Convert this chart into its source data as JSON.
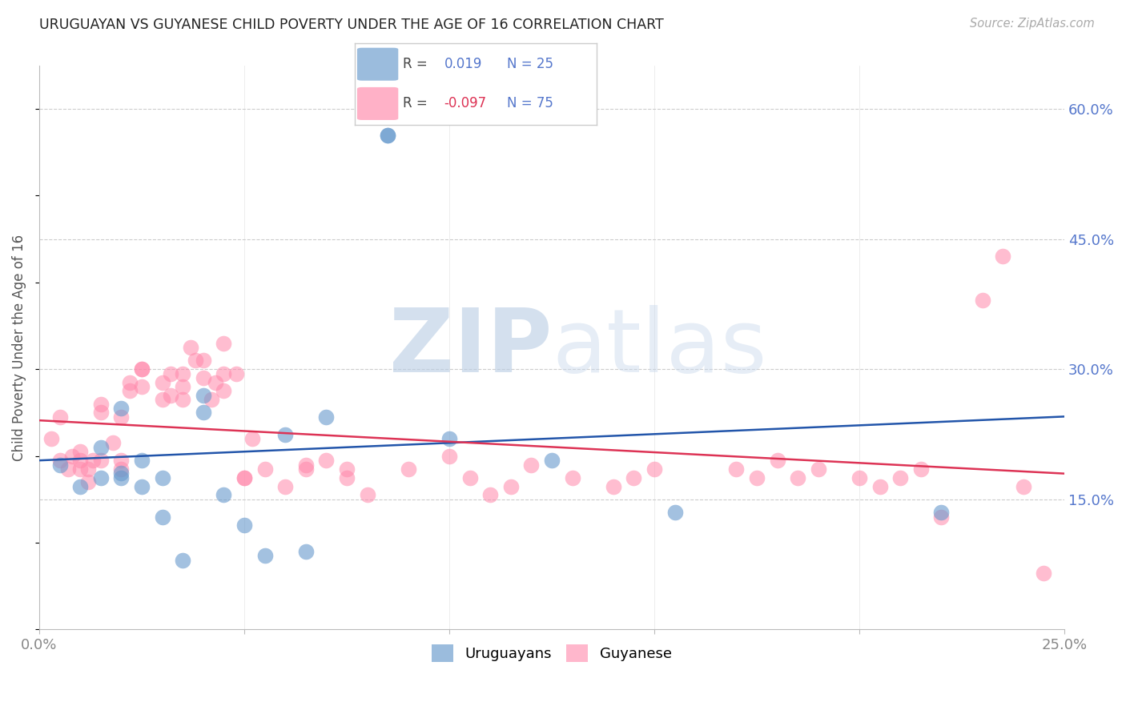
{
  "title": "URUGUAYAN VS GUYANESE CHILD POVERTY UNDER THE AGE OF 16 CORRELATION CHART",
  "source": "Source: ZipAtlas.com",
  "ylabel": "Child Poverty Under the Age of 16",
  "xmin": 0.0,
  "xmax": 25.0,
  "ymin": 0.0,
  "ymax": 65.0,
  "yticks": [
    15.0,
    30.0,
    45.0,
    60.0
  ],
  "ytick_labels": [
    "15.0%",
    "30.0%",
    "45.0%",
    "60.0%"
  ],
  "xticks": [
    0.0,
    5.0,
    10.0,
    15.0,
    20.0,
    25.0
  ],
  "xtick_labels": [
    "0.0%",
    "",
    "",
    "",
    "",
    "25.0%"
  ],
  "blue_color": "#6699CC",
  "pink_color": "#FF88AA",
  "blue_line_color": "#2255AA",
  "pink_line_color": "#DD3355",
  "axis_label_color": "#5577CC",
  "title_color": "#222222",
  "grid_color": "#CCCCCC",
  "uruguayan_x": [
    0.5,
    1.0,
    1.5,
    1.5,
    2.0,
    2.0,
    2.0,
    2.5,
    2.5,
    3.0,
    3.0,
    3.5,
    4.0,
    4.0,
    4.5,
    5.0,
    5.5,
    6.0,
    6.5,
    7.0,
    8.5,
    8.5,
    10.0,
    12.5,
    15.5,
    22.0
  ],
  "uruguayan_y": [
    19.0,
    16.5,
    17.5,
    21.0,
    17.5,
    18.0,
    25.5,
    16.5,
    19.5,
    17.5,
    13.0,
    8.0,
    25.0,
    27.0,
    15.5,
    12.0,
    8.5,
    22.5,
    9.0,
    24.5,
    57.0,
    57.0,
    22.0,
    19.5,
    13.5,
    13.5
  ],
  "guyanese_x": [
    0.3,
    0.5,
    0.5,
    0.7,
    0.8,
    1.0,
    1.0,
    1.0,
    1.2,
    1.2,
    1.3,
    1.5,
    1.5,
    1.5,
    1.8,
    2.0,
    2.0,
    2.0,
    2.2,
    2.2,
    2.5,
    2.5,
    2.5,
    3.0,
    3.0,
    3.2,
    3.2,
    3.5,
    3.5,
    3.5,
    3.7,
    3.8,
    4.0,
    4.0,
    4.2,
    4.3,
    4.5,
    4.5,
    4.5,
    4.8,
    5.0,
    5.0,
    5.2,
    5.5,
    6.0,
    6.5,
    6.5,
    7.0,
    7.5,
    7.5,
    8.0,
    9.0,
    10.0,
    10.5,
    11.0,
    11.5,
    12.0,
    13.0,
    14.0,
    14.5,
    15.0,
    17.0,
    17.5,
    18.0,
    18.5,
    19.0,
    20.0,
    20.5,
    21.0,
    21.5,
    22.0,
    23.0,
    23.5,
    24.0,
    24.5
  ],
  "guyanese_y": [
    22.0,
    19.5,
    24.5,
    18.5,
    20.0,
    18.5,
    19.5,
    20.5,
    17.0,
    18.5,
    19.5,
    19.5,
    25.0,
    26.0,
    21.5,
    18.5,
    19.5,
    24.5,
    27.5,
    28.5,
    30.0,
    28.0,
    30.0,
    26.5,
    28.5,
    27.0,
    29.5,
    26.5,
    28.0,
    29.5,
    32.5,
    31.0,
    29.0,
    31.0,
    26.5,
    28.5,
    27.5,
    29.5,
    33.0,
    29.5,
    17.5,
    17.5,
    22.0,
    18.5,
    16.5,
    18.5,
    19.0,
    19.5,
    17.5,
    18.5,
    15.5,
    18.5,
    20.0,
    17.5,
    15.5,
    16.5,
    19.0,
    17.5,
    16.5,
    17.5,
    18.5,
    18.5,
    17.5,
    19.5,
    17.5,
    18.5,
    17.5,
    16.5,
    17.5,
    18.5,
    13.0,
    38.0,
    43.0,
    16.5,
    6.5
  ]
}
